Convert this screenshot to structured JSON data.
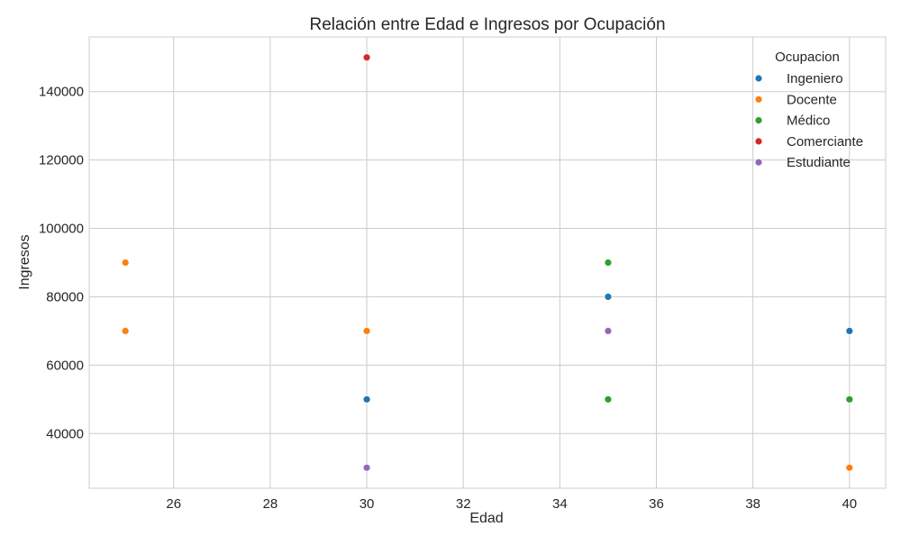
{
  "chart_data": {
    "type": "scatter",
    "title": "Relación entre Edad e Ingresos por Ocupación",
    "xlabel": "Edad",
    "ylabel": "Ingresos",
    "xlim": [
      24.25,
      40.75
    ],
    "ylim": [
      24000,
      156000
    ],
    "xticks": [
      26,
      28,
      30,
      32,
      34,
      36,
      38,
      40
    ],
    "yticks": [
      40000,
      60000,
      80000,
      100000,
      120000,
      140000
    ],
    "grid": true,
    "legend": {
      "title": "Ocupacion",
      "position": "top-right"
    },
    "series": [
      {
        "name": "Ingeniero",
        "color": "#1f77b4",
        "points": [
          [
            30,
            50000
          ],
          [
            35,
            80000
          ],
          [
            40,
            70000
          ]
        ]
      },
      {
        "name": "Docente",
        "color": "#ff7f0e",
        "points": [
          [
            25,
            90000
          ],
          [
            25,
            70000
          ],
          [
            30,
            70000
          ],
          [
            40,
            30000
          ]
        ]
      },
      {
        "name": "Médico",
        "color": "#2ca02c",
        "points": [
          [
            35,
            90000
          ],
          [
            35,
            50000
          ],
          [
            40,
            50000
          ]
        ]
      },
      {
        "name": "Comerciante",
        "color": "#d62728",
        "points": [
          [
            30,
            150000
          ]
        ]
      },
      {
        "name": "Estudiante",
        "color": "#9467bd",
        "points": [
          [
            30,
            30000
          ],
          [
            35,
            70000
          ]
        ]
      }
    ]
  }
}
